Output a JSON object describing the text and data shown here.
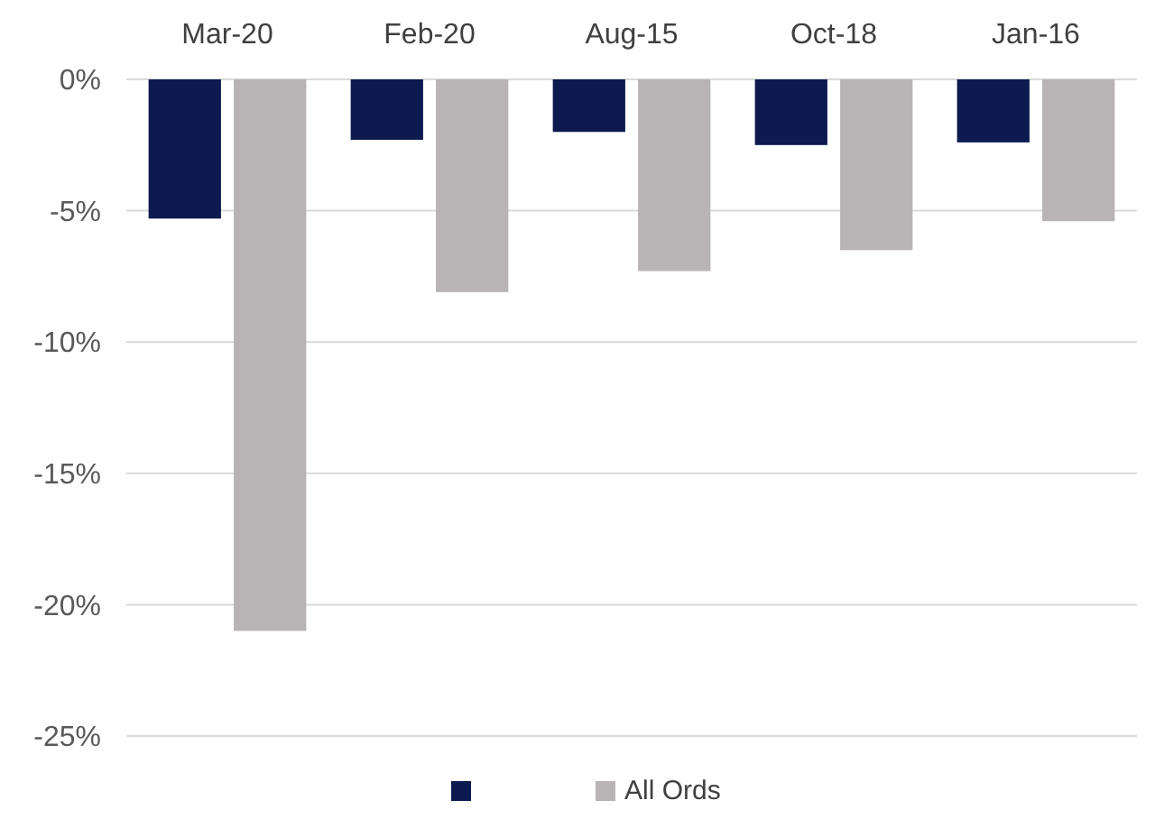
{
  "chart_data": {
    "type": "bar",
    "categories": [
      "Mar-20",
      "Feb-20",
      "Aug-15",
      "Oct-18",
      "Jan-16"
    ],
    "series": [
      {
        "color": "#0c1a4f",
        "values": [
          -5.3,
          -2.3,
          -2.0,
          -2.5,
          -2.4
        ]
      },
      {
        "name": "All Ords",
        "color": "#b8b4b5",
        "values": [
          -21.0,
          -8.1,
          -7.3,
          -6.5,
          -5.4
        ]
      }
    ],
    "ylim": [
      -25,
      0
    ],
    "yticks": [
      {
        "value": 0,
        "label": "0%"
      },
      {
        "value": -5,
        "label": "-5%"
      },
      {
        "value": -10,
        "label": "-10%"
      },
      {
        "value": -15,
        "label": "-15%"
      },
      {
        "value": -20,
        "label": "-20%"
      },
      {
        "value": -25,
        "label": "-25%"
      }
    ],
    "grid": "y",
    "legend": "bottom"
  }
}
